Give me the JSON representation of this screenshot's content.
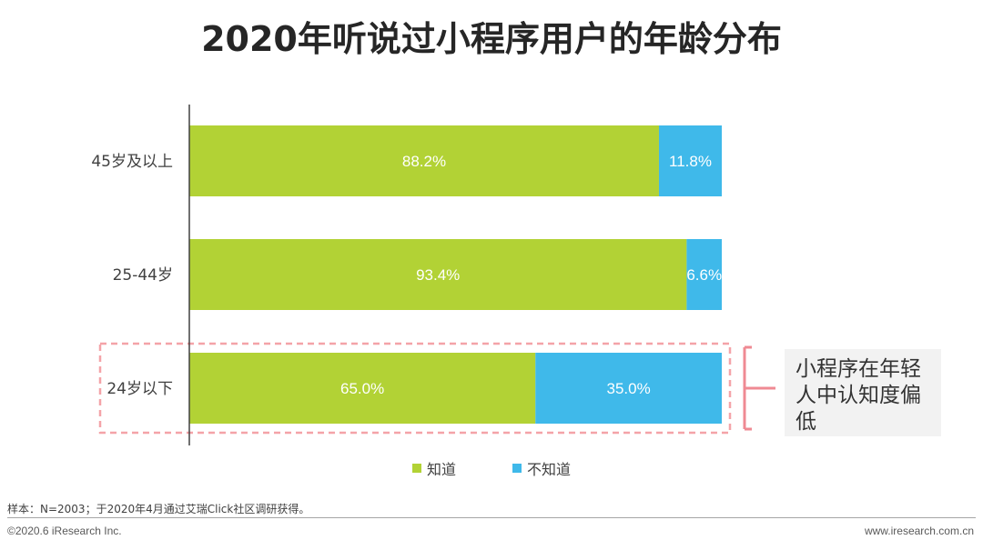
{
  "colors": {
    "know": "#b2d235",
    "dont_know": "#3fb9ea",
    "highlight_border": "#f4a3a8",
    "bracket": "#ef8a93"
  },
  "chart_data": {
    "type": "bar",
    "orientation": "horizontal",
    "stacked": true,
    "title": "2020年听说过小程序用户的年龄分布",
    "categories": [
      "45岁及以上",
      "25-44岁",
      "24岁以下"
    ],
    "series": [
      {
        "name": "知道",
        "values": [
          88.2,
          93.4,
          65.0
        ],
        "labels": [
          "88.2%",
          "93.4%",
          "65.0%"
        ]
      },
      {
        "name": "不知道",
        "values": [
          11.8,
          6.6,
          35.0
        ],
        "labels": [
          "11.8%",
          "6.6%",
          "35.0%"
        ]
      }
    ],
    "xlim": [
      0,
      100
    ],
    "legend_position": "bottom",
    "highlighted_category": "24岁以下",
    "annotation": "小程序在年轻人中认知度偏低"
  },
  "callout": {
    "lines": [
      "小程序在年轻",
      "人中认知度偏",
      "低"
    ]
  },
  "source_note": "样本：N=2003；于2020年4月通过艾瑞Click社区调研获得。",
  "footer": {
    "copyright": "©2020.6 iResearch Inc.",
    "website": "www.iresearch.com.cn"
  }
}
